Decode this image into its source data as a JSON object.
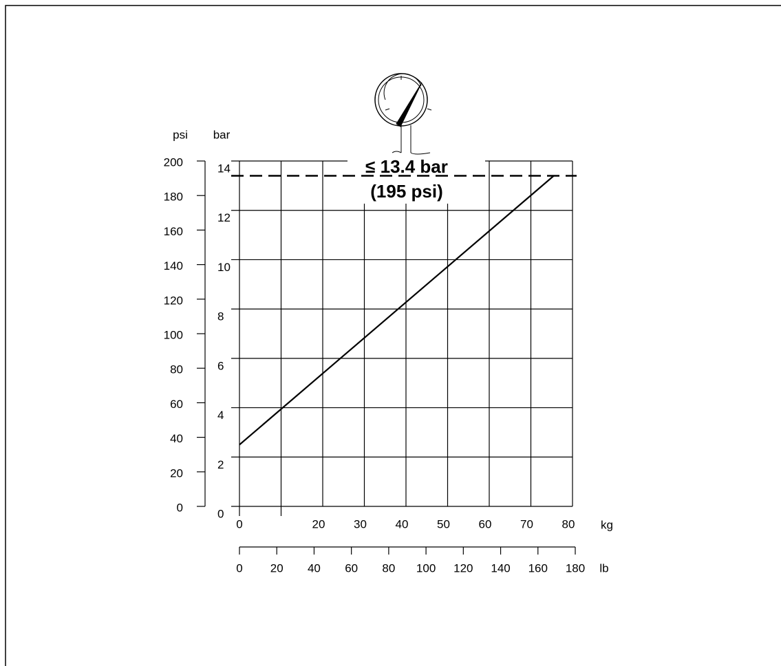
{
  "chart_data": {
    "type": "line",
    "x_label": "kg",
    "y_label": "bar",
    "y2_label": "psi",
    "x2_label": "lb",
    "x": [
      0,
      75.5
    ],
    "series": [
      {
        "color": "#000000",
        "values": [
          2.5,
          13.4
        ]
      }
    ],
    "xlim": [
      0,
      80
    ],
    "xgrid": [
      0,
      10,
      20,
      30,
      40,
      50,
      60,
      70,
      80
    ],
    "xticks": [
      0,
      20,
      30,
      40,
      50,
      60,
      70,
      80
    ],
    "ylim": [
      0,
      14
    ],
    "yticks": [
      0,
      2,
      4,
      6,
      8,
      10,
      12,
      14
    ],
    "y2lim": [
      0,
      200
    ],
    "y2ticks": [
      0,
      20,
      40,
      60,
      80,
      100,
      120,
      140,
      160,
      180,
      200
    ],
    "x2lim": [
      0,
      180
    ],
    "x2ticks": [
      0,
      20,
      40,
      60,
      80,
      100,
      120,
      140,
      160,
      180
    ],
    "threshold": {
      "value": 13.4,
      "label": "≤ 13.4 bar",
      "sublabel": "(195 psi)"
    },
    "grid": true
  }
}
